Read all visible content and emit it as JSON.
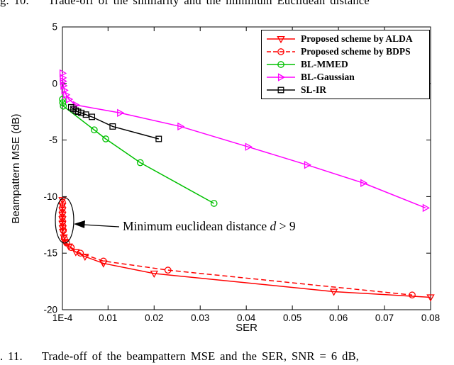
{
  "captions": {
    "top": "g. 10.    Trade-off of the similarity and the minimum Euclidean distance",
    "bottom": ". 11.    Trade-off of the beampattern MSE and the SER, SNR = 6 dB,"
  },
  "annotation": {
    "prefix": "Minimum euclidean distance ",
    "var": "d",
    "suffix": " > 9"
  },
  "chart_data": {
    "type": "line",
    "title": "",
    "xlabel": "SER",
    "ylabel": "Beampattern MSE (dB)",
    "xlim": [
      0.0001,
      0.08
    ],
    "ylim": [
      -20,
      5
    ],
    "grid": false,
    "legend_position": "top-right",
    "x_ticks": {
      "values": [
        0.0001,
        0.01,
        0.02,
        0.03,
        0.04,
        0.05,
        0.06,
        0.07,
        0.08
      ],
      "labels": [
        "1E-4",
        "0.01",
        "0.02",
        "0.03",
        "0.04",
        "0.05",
        "0.06",
        "0.07",
        "0.08"
      ]
    },
    "y_ticks": {
      "values": [
        5,
        0,
        -5,
        -10,
        -15,
        -20
      ],
      "labels": [
        "5",
        "0",
        "-5",
        "-10",
        "-15",
        "-20"
      ]
    },
    "series": [
      {
        "name": "Proposed scheme by ALDA",
        "color": "#ff0000",
        "line": "solid",
        "marker": "triangle-down",
        "points": [
          [
            0.0001,
            -10.3
          ],
          [
            0.0001,
            -10.8
          ],
          [
            0.0001,
            -11.2
          ],
          [
            0.0001,
            -11.6
          ],
          [
            0.0001,
            -12.0
          ],
          [
            0.0001,
            -12.4
          ],
          [
            0.00015,
            -12.8
          ],
          [
            0.0002,
            -13.1
          ],
          [
            0.0004,
            -13.6
          ],
          [
            0.0007,
            -14.0
          ],
          [
            0.0015,
            -14.4
          ],
          [
            0.003,
            -14.9
          ],
          [
            0.005,
            -15.3
          ],
          [
            0.009,
            -15.9
          ],
          [
            0.02,
            -16.8
          ],
          [
            0.059,
            -18.4
          ],
          [
            0.08,
            -18.9
          ]
        ]
      },
      {
        "name": "Proposed scheme by BDPS",
        "color": "#ff0000",
        "line": "dashed",
        "marker": "circle",
        "points": [
          [
            0.0001,
            -10.5
          ],
          [
            0.0001,
            -11.0
          ],
          [
            0.0001,
            -11.4
          ],
          [
            0.0001,
            -11.8
          ],
          [
            0.00015,
            -12.2
          ],
          [
            0.0002,
            -12.6
          ],
          [
            0.0003,
            -13.0
          ],
          [
            0.0005,
            -13.7
          ],
          [
            0.001,
            -14.1
          ],
          [
            0.002,
            -14.5
          ],
          [
            0.004,
            -15.0
          ],
          [
            0.009,
            -15.7
          ],
          [
            0.023,
            -16.5
          ],
          [
            0.076,
            -18.7
          ]
        ]
      },
      {
        "name": "BL-MMED",
        "color": "#00c000",
        "line": "solid",
        "marker": "circle",
        "points": [
          [
            0.0001,
            -1.4
          ],
          [
            0.00015,
            -1.7
          ],
          [
            0.0003,
            -2.0
          ],
          [
            0.007,
            -4.1
          ],
          [
            0.0095,
            -4.9
          ],
          [
            0.017,
            -7.0
          ],
          [
            0.033,
            -10.6
          ]
        ]
      },
      {
        "name": "BL-Gaussian",
        "color": "#ff00ff",
        "line": "solid",
        "marker": "triangle-right",
        "points": [
          [
            0.0001,
            0.9
          ],
          [
            0.00015,
            0.5
          ],
          [
            0.0002,
            0.2
          ],
          [
            0.0003,
            -0.2
          ],
          [
            0.0005,
            -0.6
          ],
          [
            0.0009,
            -1.0
          ],
          [
            0.0015,
            -1.4
          ],
          [
            0.003,
            -1.9
          ],
          [
            0.0126,
            -2.6
          ],
          [
            0.0257,
            -3.8
          ],
          [
            0.0404,
            -5.6
          ],
          [
            0.0532,
            -7.2
          ],
          [
            0.0654,
            -8.8
          ],
          [
            0.0789,
            -11.0
          ]
        ]
      },
      {
        "name": "SL-IR",
        "color": "#000000",
        "line": "solid",
        "marker": "square",
        "points": [
          [
            0.002,
            -2.1
          ],
          [
            0.0025,
            -2.25
          ],
          [
            0.003,
            -2.4
          ],
          [
            0.0035,
            -2.5
          ],
          [
            0.0042,
            -2.6
          ],
          [
            0.0052,
            -2.75
          ],
          [
            0.0065,
            -2.95
          ],
          [
            0.011,
            -3.8
          ],
          [
            0.021,
            -4.9
          ]
        ]
      }
    ]
  }
}
